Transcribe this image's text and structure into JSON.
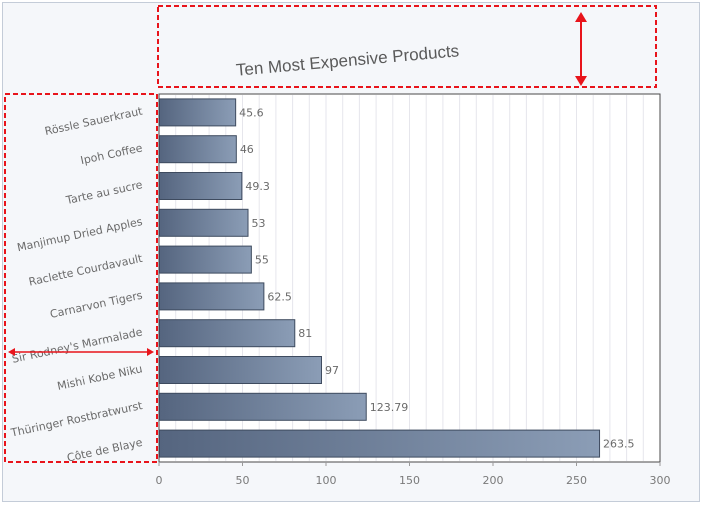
{
  "chart_data": {
    "type": "bar",
    "orientation": "horizontal",
    "title": "Ten Most Expensive Products",
    "categories": [
      "Rössle Sauerkraut",
      "Ipoh Coffee",
      "Tarte au sucre",
      "Manjimup Dried Apples",
      "Raclette Courdavault",
      "Carnarvon Tigers",
      "Sir Rodney's Marmalade",
      "Mishi Kobe Niku",
      "Thüringer Rostbratwurst",
      "Côte de Blaye"
    ],
    "values": [
      45.6,
      46,
      49.3,
      53,
      55,
      62.5,
      81,
      97,
      123.79,
      263.5
    ],
    "xlim": [
      0,
      300
    ],
    "xticks": [
      0,
      50,
      100,
      150,
      200,
      250,
      300
    ],
    "grid": true,
    "data_labels": true,
    "colors": {
      "bar_dark": "#55657f",
      "bar_light": "#8b9db6",
      "bar_border": "#3e4b5f",
      "plot_bg": "#ffffff",
      "frame_bg": "#f5f7fa",
      "grid": "#e6e6ec",
      "text": "#6a6a6a",
      "highlight": "#e8141b"
    }
  }
}
